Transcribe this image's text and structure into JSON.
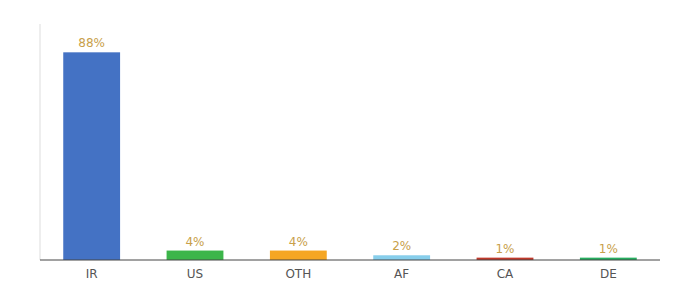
{
  "chart_data": {
    "type": "bar",
    "categories": [
      "IR",
      "US",
      "OTH",
      "AF",
      "CA",
      "DE"
    ],
    "values": [
      88,
      4,
      4,
      2,
      1,
      1
    ],
    "value_labels": [
      "88%",
      "4%",
      "4%",
      "2%",
      "1%",
      "1%"
    ],
    "colors": [
      "#4472c4",
      "#3cb54a",
      "#f5a623",
      "#87ceeb",
      "#c0392b",
      "#27ae60"
    ],
    "ylim": [
      0,
      100
    ],
    "data_labels": true,
    "tick_labels": "x",
    "grid": false
  }
}
